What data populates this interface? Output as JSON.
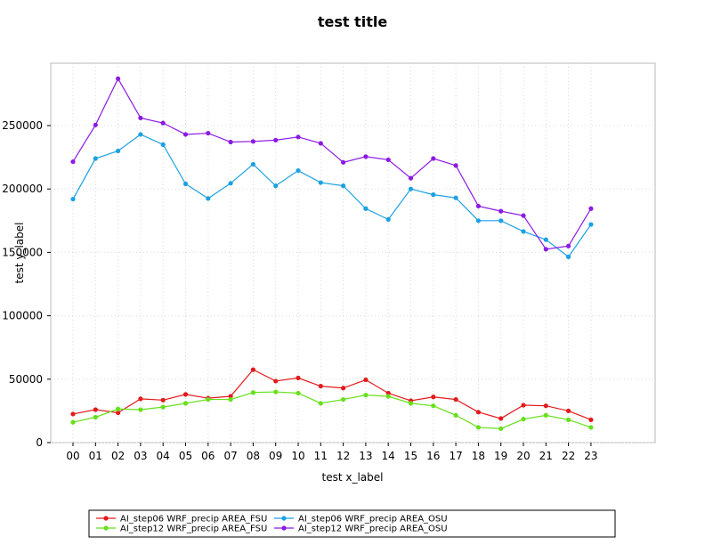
{
  "chart_data": {
    "type": "line",
    "title": "test title",
    "xlabel": "test x_label",
    "ylabel": "test y_label",
    "categories": [
      "00",
      "01",
      "02",
      "03",
      "04",
      "05",
      "06",
      "07",
      "08",
      "09",
      "10",
      "11",
      "12",
      "13",
      "14",
      "15",
      "16",
      "17",
      "18",
      "19",
      "20",
      "21",
      "22",
      "23"
    ],
    "ylim": [
      0,
      300000
    ],
    "yticks": [
      0,
      50000,
      100000,
      150000,
      200000,
      250000
    ],
    "grid": true,
    "legend_position": "bottom",
    "series": [
      {
        "name": "AI_step06 WRF_precip AREA_FSU",
        "color": "#e31a1c",
        "values": [
          22500,
          26000,
          23500,
          34500,
          33500,
          38000,
          35000,
          36500,
          57500,
          48500,
          51000,
          44500,
          43000,
          49500,
          39000,
          33000,
          36000,
          34000,
          24000,
          19000,
          29500,
          29000,
          25000,
          18000
        ]
      },
      {
        "name": "AI_step12 WRF_precip AREA_FSU",
        "color": "#66e01a",
        "values": [
          16000,
          20000,
          26500,
          26000,
          28000,
          31000,
          34000,
          34000,
          39500,
          40000,
          39000,
          31000,
          34000,
          37500,
          36500,
          31000,
          29000,
          21500,
          12000,
          11000,
          18500,
          21500,
          18000,
          12000
        ]
      },
      {
        "name": "AI_step06 WRF_precip AREA_OSU",
        "color": "#1ba1e2",
        "values": [
          192000,
          224000,
          230000,
          243000,
          235000,
          204000,
          192500,
          204500,
          219500,
          202500,
          214500,
          205000,
          202500,
          184500,
          176000,
          200000,
          195500,
          193000,
          175000,
          175000,
          166500,
          160000,
          146500,
          172000
        ]
      },
      {
        "name": "AI_step12 WRF_precip AREA_OSU",
        "color": "#8c1ae3",
        "values": [
          221500,
          250500,
          287000,
          256000,
          252000,
          243000,
          244000,
          237000,
          237500,
          238500,
          241000,
          236000,
          221000,
          225500,
          223000,
          208500,
          224000,
          218500,
          186500,
          182500,
          179000,
          152500,
          155000,
          184500
        ]
      }
    ]
  }
}
